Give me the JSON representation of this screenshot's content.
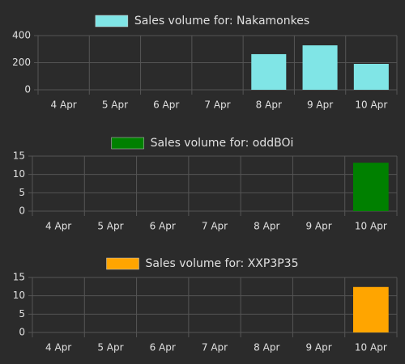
{
  "chart_data": [
    {
      "type": "bar",
      "categories": [
        "4 Apr",
        "5 Apr",
        "6 Apr",
        "7 Apr",
        "8 Apr",
        "9 Apr",
        "10 Apr"
      ],
      "series": [
        {
          "name": "Sales volume for: Nakamonkes",
          "color": "#80e5e6",
          "values": [
            0,
            0,
            0,
            0,
            263,
            328,
            191
          ]
        }
      ],
      "ylim": [
        0,
        400
      ],
      "yticks": [
        0,
        200,
        400
      ],
      "grid": true
    },
    {
      "type": "bar",
      "categories": [
        "4 Apr",
        "5 Apr",
        "6 Apr",
        "7 Apr",
        "8 Apr",
        "9 Apr",
        "10 Apr"
      ],
      "series": [
        {
          "name": "Sales volume for: oddBOi",
          "color": "#008000",
          "values": [
            0,
            0,
            0,
            0,
            0,
            0,
            13.2
          ]
        }
      ],
      "ylim": [
        0,
        15
      ],
      "yticks": [
        0,
        5,
        10,
        15
      ],
      "grid": true
    },
    {
      "type": "bar",
      "categories": [
        "4 Apr",
        "5 Apr",
        "6 Apr",
        "7 Apr",
        "8 Apr",
        "9 Apr",
        "10 Apr"
      ],
      "series": [
        {
          "name": "Sales volume for: XXP3P35",
          "color": "#ffa500",
          "values": [
            0,
            0,
            0,
            0,
            0,
            0,
            12.4
          ]
        }
      ],
      "ylim": [
        0,
        15
      ],
      "yticks": [
        0,
        5,
        10,
        15
      ],
      "grid": true
    }
  ]
}
